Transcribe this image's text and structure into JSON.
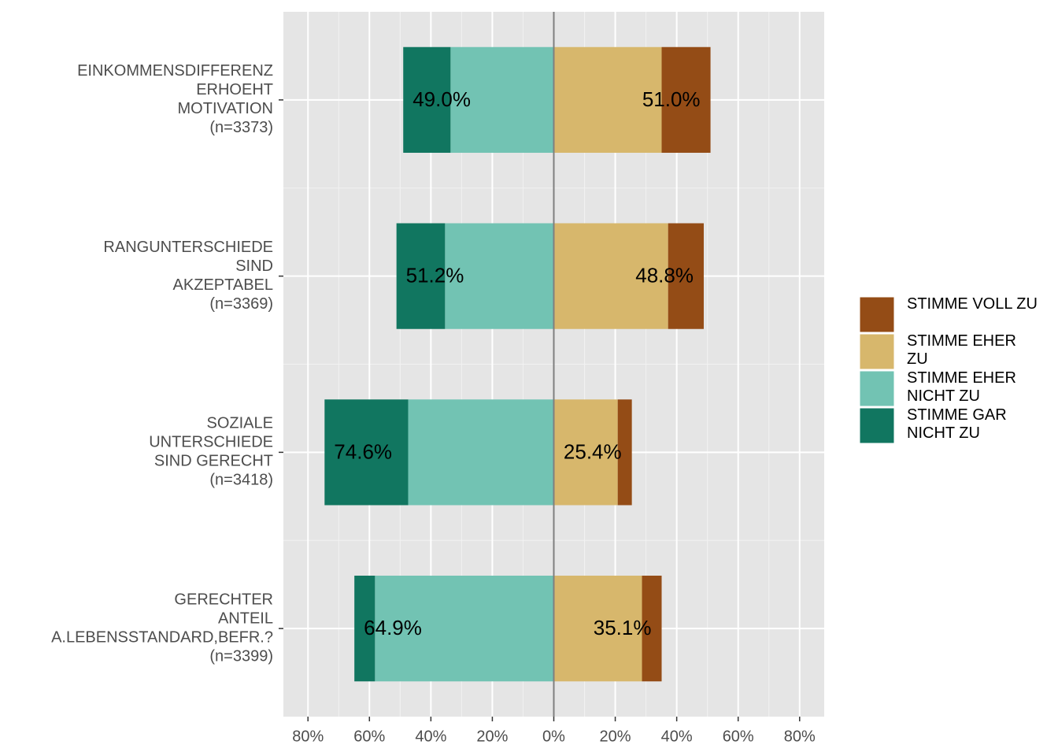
{
  "chart_data": {
    "type": "diverging_bar",
    "categories": [
      [
        "EINKOMMENSDIFFERENZ",
        "ERHOEHT",
        "MOTIVATION",
        "(n=3373)"
      ],
      [
        "RANGUNTERSCHIEDE",
        "SIND",
        "AKZEPTABEL",
        "(n=3369)"
      ],
      [
        "SOZIALE",
        "UNTERSCHIEDE",
        "SIND GERECHT",
        "(n=3418)"
      ],
      [
        "GERECHTER",
        "ANTEIL",
        "A.LEBENSSTANDARD,BEFR.?",
        "(n=3399)"
      ]
    ],
    "series": [
      {
        "name": "STIMME VOLL ZU",
        "color": "#944c16",
        "values": [
          15.9,
          11.6,
          4.6,
          6.4
        ]
      },
      {
        "name": "STIMME EHER ZU",
        "color": "#d7b76c",
        "values": [
          35.1,
          37.2,
          20.8,
          28.7
        ]
      },
      {
        "name": "STIMME EHER NICHT ZU",
        "color": "#72c3b3",
        "values": [
          -33.6,
          -35.4,
          -47.4,
          -58.2
        ]
      },
      {
        "name": "STIMME GAR NICHT ZU",
        "color": "#117660",
        "values": [
          -15.4,
          -15.8,
          -27.2,
          -6.7
        ]
      }
    ],
    "left_labels": [
      "49.0%",
      "51.2%",
      "74.6%",
      "64.9%"
    ],
    "right_labels": [
      "51.0%",
      "48.8%",
      "25.4%",
      "35.1%"
    ],
    "xlim": [
      -88,
      88
    ],
    "xticks": [
      {
        "value": -80,
        "label": "80%"
      },
      {
        "value": -60,
        "label": "60%"
      },
      {
        "value": -40,
        "label": "40%"
      },
      {
        "value": -20,
        "label": "20%"
      },
      {
        "value": 0,
        "label": "0%"
      },
      {
        "value": 20,
        "label": "20%"
      },
      {
        "value": 40,
        "label": "40%"
      },
      {
        "value": 60,
        "label": "60%"
      },
      {
        "value": 80,
        "label": "80%"
      }
    ],
    "grid": true,
    "legend": "right"
  }
}
